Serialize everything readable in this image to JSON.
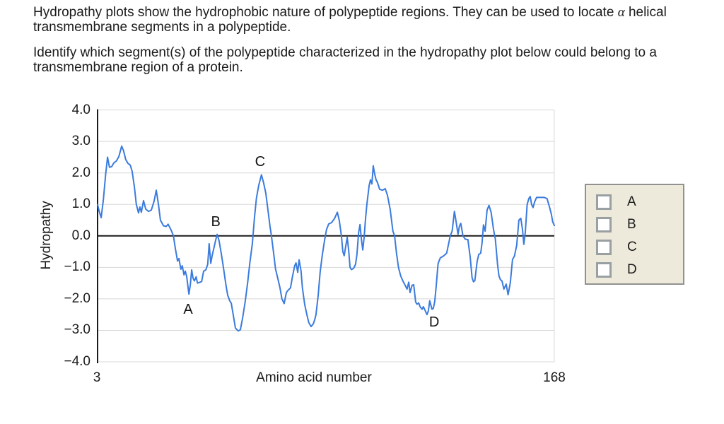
{
  "intro": {
    "part1": "Hydropathy plots show the hydrophobic nature of polypeptide regions. They can be used to locate ",
    "alpha": "α",
    "part2": " helical transmembrane segments in a polypeptide."
  },
  "question": "Identify which segment(s) of the polypeptide characterized in the hydropathy plot below could belong to a transmembrane region of a protein.",
  "chart": {
    "ylabel": "Hydropathy",
    "xlabel": "Amino acid number",
    "x_first_tick": "3",
    "x_last_tick": "168",
    "y_ticks": [
      "4.0",
      "3.0",
      "2.0",
      "1.0",
      "0.0",
      "−1.0",
      "−2.0",
      "−3.0",
      "−4.0"
    ]
  },
  "chart_data": {
    "type": "line",
    "title": "",
    "xlabel": "Amino acid number",
    "ylabel": "Hydropathy",
    "xlim": [
      3,
      168
    ],
    "ylim": [
      -4.0,
      4.0
    ],
    "grid": true,
    "line_color": "#3b7bdd",
    "zero_line": true,
    "annotations": [
      {
        "label": "A",
        "x": 35.7,
        "y": -2.35
      },
      {
        "label": "B",
        "x": 45.7,
        "y": 0.44
      },
      {
        "label": "C",
        "x": 61.7,
        "y": 2.35
      },
      {
        "label": "D",
        "x": 124.6,
        "y": -2.75
      }
    ],
    "series": [
      {
        "name": "hydropathy",
        "points": [
          [
            3,
            1.0
          ],
          [
            3.6,
            0.78
          ],
          [
            4.3,
            0.58
          ],
          [
            5.1,
            1.15
          ],
          [
            5.9,
            1.95
          ],
          [
            6.6,
            2.5
          ],
          [
            7.3,
            2.18
          ],
          [
            8.1,
            2.2
          ],
          [
            8.9,
            2.32
          ],
          [
            9.8,
            2.38
          ],
          [
            10.7,
            2.52
          ],
          [
            11.7,
            2.85
          ],
          [
            12.4,
            2.7
          ],
          [
            13.2,
            2.42
          ],
          [
            14,
            2.3
          ],
          [
            14.8,
            2.25
          ],
          [
            15.5,
            2.05
          ],
          [
            16.3,
            1.55
          ],
          [
            17,
            1.0
          ],
          [
            17.8,
            0.73
          ],
          [
            18.3,
            0.92
          ],
          [
            18.8,
            0.75
          ],
          [
            19.6,
            1.12
          ],
          [
            20.4,
            0.85
          ],
          [
            21.4,
            0.78
          ],
          [
            22.4,
            0.82
          ],
          [
            23.4,
            1.1
          ],
          [
            24.2,
            1.45
          ],
          [
            25,
            1.0
          ],
          [
            25.7,
            0.5
          ],
          [
            26.8,
            0.32
          ],
          [
            27.8,
            0.3
          ],
          [
            28.5,
            0.37
          ],
          [
            29.6,
            0.18
          ],
          [
            30.4,
            0
          ],
          [
            31.1,
            -0.4
          ],
          [
            31.9,
            -0.8
          ],
          [
            32.4,
            -0.72
          ],
          [
            33.1,
            -1.06
          ],
          [
            33.6,
            -0.95
          ],
          [
            34.2,
            -1.24
          ],
          [
            34.7,
            -1.12
          ],
          [
            35.2,
            -1.3
          ],
          [
            36,
            -1.85
          ],
          [
            36.5,
            -1.55
          ],
          [
            37,
            -1.08
          ],
          [
            37.5,
            -1.35
          ],
          [
            38,
            -1.43
          ],
          [
            38.6,
            -1.3
          ],
          [
            39.1,
            -1.5
          ],
          [
            39.8,
            -1.48
          ],
          [
            40.6,
            -1.45
          ],
          [
            41.3,
            -1.12
          ],
          [
            42.1,
            -1.08
          ],
          [
            42.8,
            -0.9
          ],
          [
            43.3,
            -0.25
          ],
          [
            43.9,
            -0.87
          ],
          [
            44.4,
            -0.62
          ],
          [
            45,
            -0.4
          ],
          [
            45.7,
            -0.12
          ],
          [
            46.2,
            0.05
          ],
          [
            46.9,
            -0.16
          ],
          [
            47.7,
            -0.57
          ],
          [
            48.5,
            -1.02
          ],
          [
            49.4,
            -1.58
          ],
          [
            50,
            -1.88
          ],
          [
            50.8,
            -2.07
          ],
          [
            51.3,
            -2.14
          ],
          [
            52,
            -2.5
          ],
          [
            52.8,
            -2.93
          ],
          [
            53.8,
            -3.02
          ],
          [
            54.6,
            -2.98
          ],
          [
            55.4,
            -2.6
          ],
          [
            56.3,
            -2.1
          ],
          [
            57.2,
            -1.5
          ],
          [
            58,
            -0.87
          ],
          [
            58.9,
            -0.25
          ],
          [
            59.7,
            0.6
          ],
          [
            60.4,
            1.2
          ],
          [
            61.2,
            1.6
          ],
          [
            62.2,
            1.94
          ],
          [
            63,
            1.68
          ],
          [
            63.8,
            1.35
          ],
          [
            64.5,
            0.85
          ],
          [
            65.3,
            0.3
          ],
          [
            65.8,
            0
          ],
          [
            66.6,
            -0.55
          ],
          [
            67.3,
            -1.05
          ],
          [
            68.1,
            -1.35
          ],
          [
            68.9,
            -1.65
          ],
          [
            69.6,
            -2.0
          ],
          [
            70.4,
            -2.15
          ],
          [
            71.2,
            -1.8
          ],
          [
            71.9,
            -1.72
          ],
          [
            72.7,
            -1.65
          ],
          [
            73.4,
            -1.3
          ],
          [
            74.2,
            -0.95
          ],
          [
            74.7,
            -0.86
          ],
          [
            75.3,
            -1.16
          ],
          [
            75.8,
            -0.76
          ],
          [
            76.5,
            -1.12
          ],
          [
            77,
            -1.65
          ],
          [
            77.8,
            -2.17
          ],
          [
            78.6,
            -2.5
          ],
          [
            79.3,
            -2.75
          ],
          [
            80.1,
            -2.88
          ],
          [
            80.9,
            -2.8
          ],
          [
            81.4,
            -2.68
          ],
          [
            81.9,
            -2.5
          ],
          [
            82.7,
            -1.9
          ],
          [
            83.4,
            -1.15
          ],
          [
            84.2,
            -0.6
          ],
          [
            85,
            -0.15
          ],
          [
            85.7,
            0.2
          ],
          [
            86.5,
            0.38
          ],
          [
            87.5,
            0.42
          ],
          [
            88.6,
            0.55
          ],
          [
            89.6,
            0.75
          ],
          [
            90.3,
            0.5
          ],
          [
            91.1,
            0
          ],
          [
            91.6,
            -0.5
          ],
          [
            92.1,
            -0.63
          ],
          [
            92.7,
            -0.3
          ],
          [
            93.2,
            -0.05
          ],
          [
            93.7,
            -0.45
          ],
          [
            94.2,
            -1.0
          ],
          [
            94.7,
            -1.07
          ],
          [
            95.5,
            -1.03
          ],
          [
            96.2,
            -0.9
          ],
          [
            96.7,
            -0.6
          ],
          [
            97.3,
            0.1
          ],
          [
            97.8,
            0.36
          ],
          [
            98.3,
            -0.1
          ],
          [
            98.8,
            -0.45
          ],
          [
            99.3,
            -0.05
          ],
          [
            99.8,
            0.55
          ],
          [
            100.3,
            1.0
          ],
          [
            101.1,
            1.6
          ],
          [
            101.6,
            1.78
          ],
          [
            102.1,
            1.65
          ],
          [
            102.6,
            2.23
          ],
          [
            103.1,
            1.97
          ],
          [
            103.6,
            1.78
          ],
          [
            104.1,
            1.7
          ],
          [
            104.9,
            1.48
          ],
          [
            105.9,
            1.45
          ],
          [
            106.9,
            1.5
          ],
          [
            107.7,
            1.3
          ],
          [
            108.7,
            0.85
          ],
          [
            109.7,
            0.15
          ],
          [
            110.3,
            0
          ],
          [
            111,
            -0.55
          ],
          [
            111.7,
            -1.0
          ],
          [
            112.5,
            -1.27
          ],
          [
            113.3,
            -1.43
          ],
          [
            114.1,
            -1.57
          ],
          [
            114.8,
            -1.69
          ],
          [
            115.4,
            -1.47
          ],
          [
            115.9,
            -1.8
          ],
          [
            116.6,
            -1.57
          ],
          [
            117.2,
            -1.55
          ],
          [
            117.9,
            -2.1
          ],
          [
            118.4,
            -2.17
          ],
          [
            119,
            -2.13
          ],
          [
            119.5,
            -2.25
          ],
          [
            120.2,
            -2.33
          ],
          [
            120.7,
            -2.25
          ],
          [
            121.5,
            -2.4
          ],
          [
            122,
            -2.5
          ],
          [
            122.5,
            -2.38
          ],
          [
            123,
            -2.06
          ],
          [
            123.8,
            -2.33
          ],
          [
            124.3,
            -2.3
          ],
          [
            124.8,
            -2.08
          ],
          [
            125.3,
            -1.63
          ],
          [
            126,
            -0.88
          ],
          [
            126.8,
            -0.7
          ],
          [
            128.1,
            -0.63
          ],
          [
            129.1,
            -0.55
          ],
          [
            129.9,
            -0.22
          ],
          [
            130.4,
            0
          ],
          [
            131.1,
            0.15
          ],
          [
            131.9,
            0.78
          ],
          [
            132.4,
            0.52
          ],
          [
            133.2,
            0.05
          ],
          [
            133.7,
            0.3
          ],
          [
            134.2,
            0.4
          ],
          [
            135,
            0
          ],
          [
            135.8,
            -0.1
          ],
          [
            136.8,
            -0.12
          ],
          [
            137.6,
            -0.67
          ],
          [
            138.3,
            -1.33
          ],
          [
            138.8,
            -1.46
          ],
          [
            139.3,
            -1.42
          ],
          [
            140.1,
            -0.82
          ],
          [
            140.7,
            -0.59
          ],
          [
            141.4,
            -0.55
          ],
          [
            141.9,
            -0.22
          ],
          [
            142.4,
            0.35
          ],
          [
            143,
            0.15
          ],
          [
            143.7,
            0.82
          ],
          [
            144.4,
            0.97
          ],
          [
            145.2,
            0.74
          ],
          [
            146,
            0.22
          ],
          [
            146.7,
            -0.1
          ],
          [
            147.5,
            -0.9
          ],
          [
            148,
            -1.27
          ],
          [
            148.5,
            -1.39
          ],
          [
            149.1,
            -1.43
          ],
          [
            149.8,
            -1.69
          ],
          [
            150.6,
            -1.53
          ],
          [
            151.3,
            -1.87
          ],
          [
            152.1,
            -1.5
          ],
          [
            152.9,
            -0.75
          ],
          [
            153.6,
            -0.64
          ],
          [
            154.4,
            -0.3
          ],
          [
            155.2,
            0.5
          ],
          [
            155.9,
            0.56
          ],
          [
            156.5,
            0.2
          ],
          [
            157,
            -0.27
          ],
          [
            157.5,
            0.1
          ],
          [
            158.2,
            1.0
          ],
          [
            158.8,
            1.19
          ],
          [
            159.3,
            1.25
          ],
          [
            159.8,
            1.0
          ],
          [
            160.3,
            0.9
          ],
          [
            160.9,
            1.08
          ],
          [
            161.6,
            1.22
          ],
          [
            163,
            1.22
          ],
          [
            164.4,
            1.22
          ],
          [
            165.4,
            1.18
          ],
          [
            166.2,
            0.93
          ],
          [
            166.9,
            0.7
          ],
          [
            167.4,
            0.45
          ],
          [
            168,
            0.33
          ]
        ]
      }
    ]
  },
  "answers": {
    "options": [
      {
        "label": "A",
        "checked": false
      },
      {
        "label": "B",
        "checked": false
      },
      {
        "label": "C",
        "checked": false
      },
      {
        "label": "D",
        "checked": false
      }
    ]
  },
  "colors": {
    "curve": "#3b7bdd",
    "gridline": "#d8d8d8",
    "axis": "#1a1a1a",
    "panel_bg": "#edeadb",
    "panel_border": "#919191",
    "checkbox_border": "#9aa0a2"
  }
}
